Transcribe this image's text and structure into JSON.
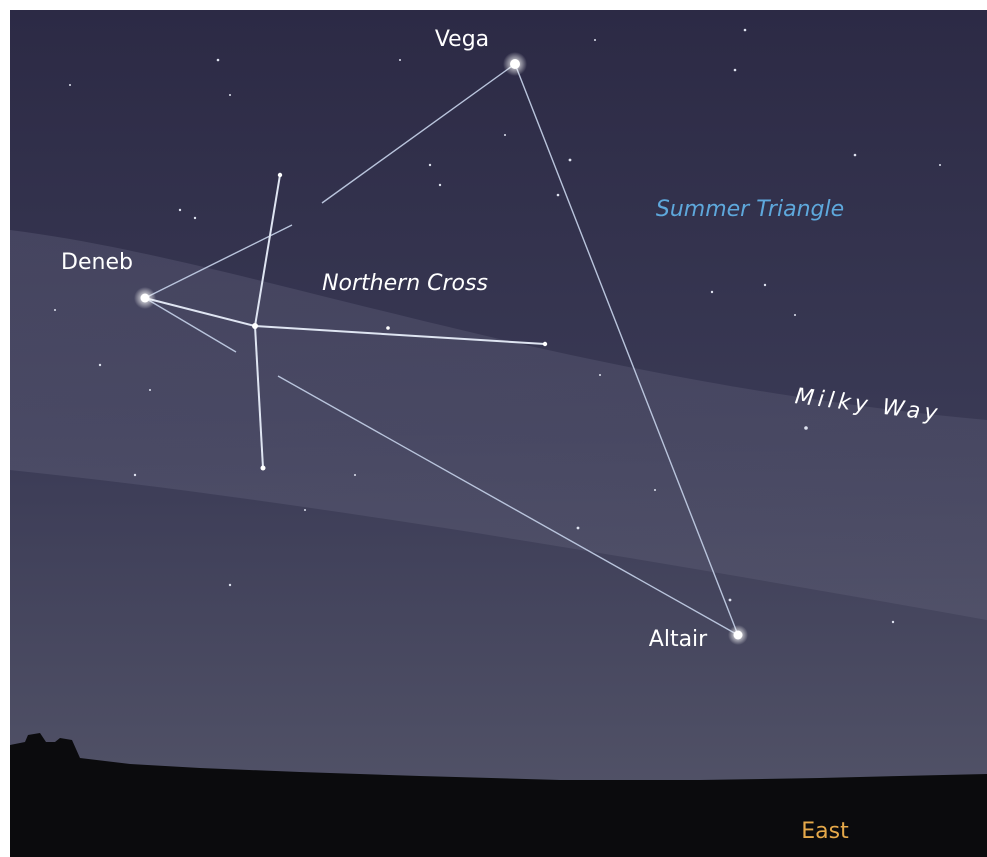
{
  "stars": [
    {
      "label": "Vega"
    },
    {
      "label": "Deneb"
    },
    {
      "label": "Altair"
    }
  ],
  "asterisms": [
    {
      "label": "Summer Triangle"
    },
    {
      "label": "Northern Cross"
    }
  ],
  "sky_region": "Milky Way",
  "direction": "East"
}
